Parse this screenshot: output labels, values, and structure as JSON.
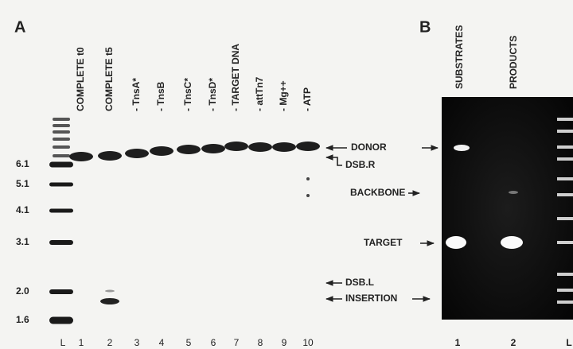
{
  "panel_a": {
    "label": "A",
    "lanes": [
      "COMPLETE t0",
      "COMPLETE t5",
      "- TnsA*",
      "- TnsB",
      "- TnsC*",
      "- TnsD*",
      "- TARGET DNA",
      "- attTn7",
      "- Mg++",
      "- ATP"
    ],
    "lane_numbers": [
      "L",
      "1",
      "2",
      "3",
      "4",
      "5",
      "6",
      "7",
      "8",
      "9",
      "10"
    ],
    "size_markers": [
      "6.1",
      "5.1",
      "4.1",
      "3.1",
      "2.0",
      "1.6"
    ]
  },
  "annotations": {
    "donor": "DONOR",
    "dsb_r": "DSB.R",
    "backbone": "BACKBONE",
    "target": "TARGET",
    "dsb_l": "DSB.L",
    "insertion": "INSERTION"
  },
  "panel_b": {
    "label": "B",
    "lanes": [
      "SUBSTRATES",
      "PRODUCTS"
    ],
    "lane_numbers": [
      "1",
      "2",
      "L"
    ]
  }
}
